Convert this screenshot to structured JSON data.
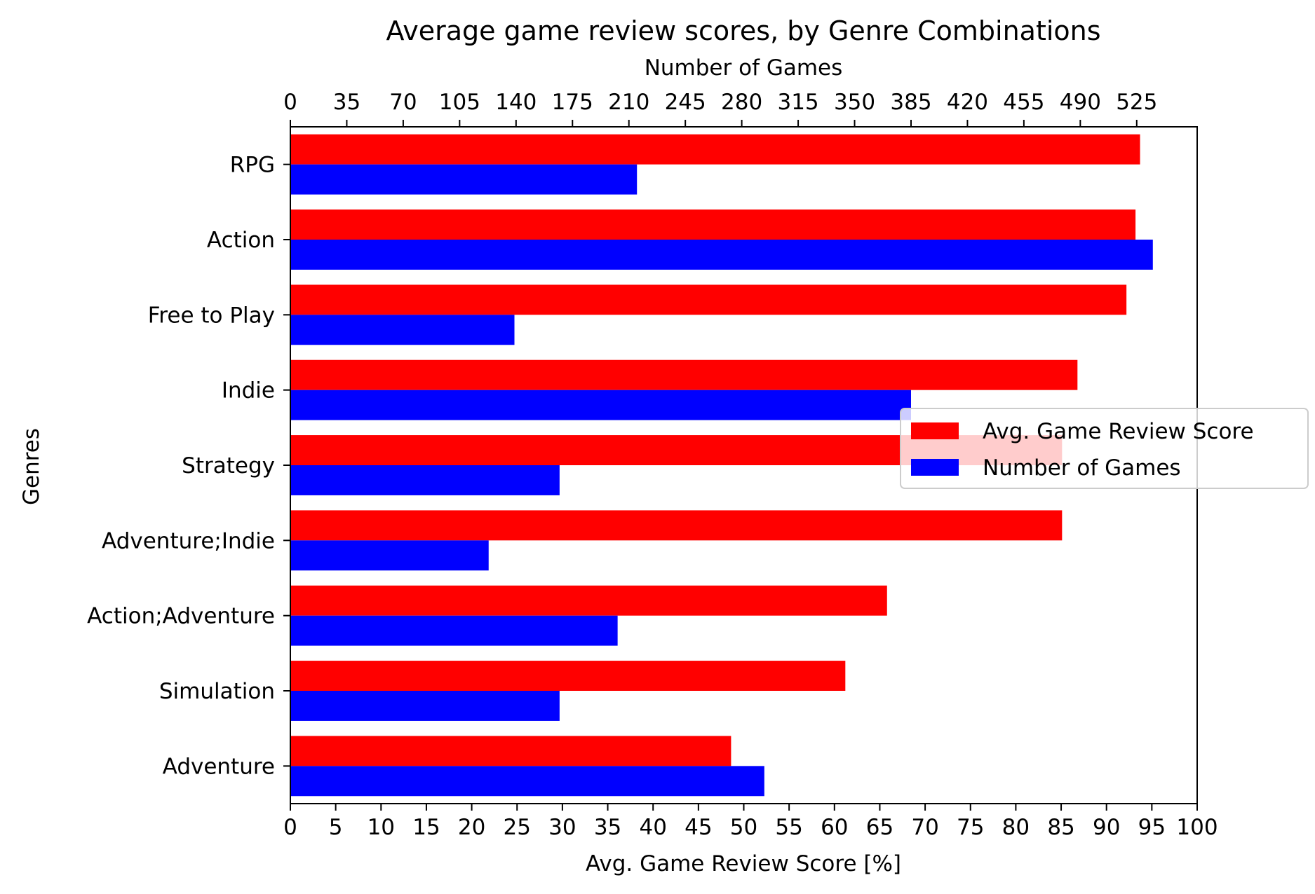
{
  "chart_data": {
    "type": "bar",
    "orientation": "horizontal",
    "title": "Average game review scores, by Genre Combinations",
    "ylabel": "Genres",
    "categories": [
      "RPG",
      "Action",
      "Free to Play",
      "Indie",
      "Strategy",
      "Adventure;Indie",
      "Action;Adventure",
      "Simulation",
      "Adventure"
    ],
    "series": [
      {
        "name": "Avg. Game Review Score",
        "axis": "bottom",
        "color": "#ff0000",
        "values": [
          93.7,
          93.2,
          92.2,
          86.8,
          85.1,
          85.1,
          65.8,
          61.2,
          48.6
        ]
      },
      {
        "name": "Number of Games",
        "axis": "top",
        "color": "#0000ff",
        "values": [
          215,
          535,
          139,
          385,
          167,
          123,
          203,
          167,
          294
        ]
      }
    ],
    "x_bottom": {
      "label": "Avg. Game Review Score [%]",
      "lim": [
        0,
        100
      ],
      "ticks": [
        "0",
        "5",
        "10",
        "15",
        "20",
        "25",
        "30",
        "35",
        "40",
        "45",
        "50",
        "55",
        "60",
        "65",
        "70",
        "75",
        "80",
        "85",
        "90",
        "95",
        "100"
      ]
    },
    "x_top": {
      "label": "Number of Games",
      "lim": [
        0,
        562.5
      ],
      "ticks": [
        "0",
        "35",
        "70",
        "105",
        "140",
        "175",
        "210",
        "245",
        "280",
        "315",
        "350",
        "385",
        "420",
        "455",
        "490",
        "525"
      ]
    },
    "legend": {
      "position": "right",
      "entries": [
        "Avg. Game Review Score",
        "Number of Games"
      ]
    },
    "grid": false
  }
}
